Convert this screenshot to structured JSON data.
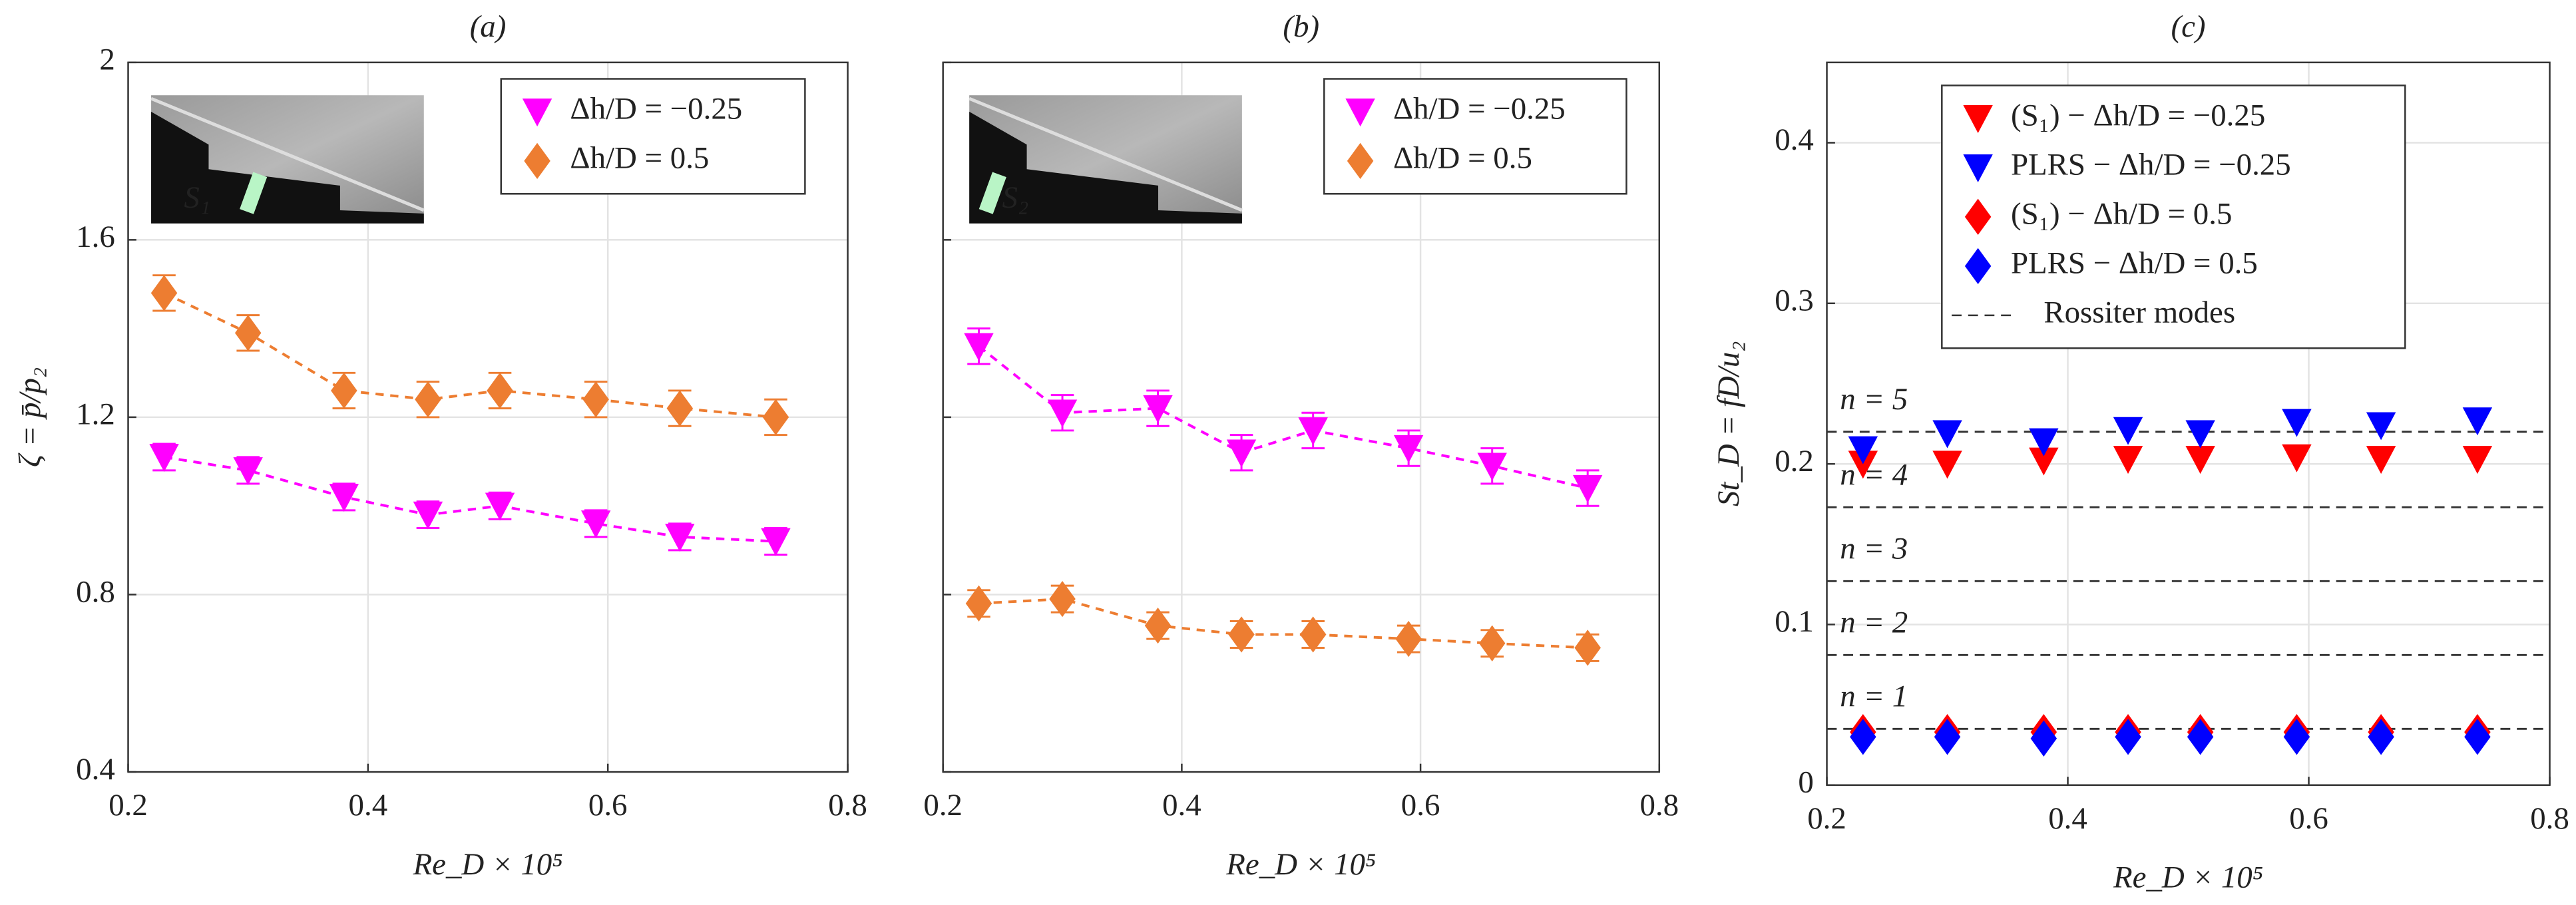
{
  "chart_data": [
    {
      "type": "line",
      "panel_label": "(a)",
      "ylabel": "ζ = p̄/p₂",
      "xlabel": "Re_D × 10⁵",
      "inset_label": "S₁",
      "x": [
        0.23,
        0.3,
        0.38,
        0.45,
        0.51,
        0.59,
        0.66,
        0.74
      ],
      "xlim": [
        0.2,
        0.8
      ],
      "xticks": [
        0.2,
        0.4,
        0.6,
        0.8
      ],
      "ylim": [
        0.4,
        2
      ],
      "yticks": [
        0.4,
        0.8,
        1.2,
        1.6,
        2
      ],
      "grid": true,
      "legend": "upper right",
      "series": [
        {
          "name": "Δh/D = −0.25",
          "color": "#ff00ff",
          "marker": "triangle-down",
          "values": [
            1.11,
            1.08,
            1.02,
            0.98,
            1.0,
            0.96,
            0.93,
            0.92
          ],
          "errors": [
            0.03,
            0.03,
            0.03,
            0.03,
            0.03,
            0.03,
            0.03,
            0.03
          ]
        },
        {
          "name": "Δh/D = 0.5",
          "color": "#ed7d31",
          "marker": "diamond",
          "values": [
            1.48,
            1.39,
            1.26,
            1.24,
            1.26,
            1.24,
            1.22,
            1.2
          ],
          "errors": [
            0.04,
            0.04,
            0.04,
            0.04,
            0.04,
            0.04,
            0.04,
            0.04
          ]
        }
      ]
    },
    {
      "type": "line",
      "panel_label": "(b)",
      "xlabel": "Re_D × 10⁵",
      "inset_label": "S₂",
      "show_ytick_labels": false,
      "x": [
        0.23,
        0.3,
        0.38,
        0.45,
        0.51,
        0.59,
        0.66,
        0.74
      ],
      "xlim": [
        0.2,
        0.8
      ],
      "xticks": [
        0.2,
        0.4,
        0.6,
        0.8
      ],
      "ylim": [
        0.4,
        2
      ],
      "yticks": [
        0.4,
        0.8,
        1.2,
        1.6,
        2
      ],
      "grid": true,
      "legend": "upper right",
      "series": [
        {
          "name": "Δh/D = −0.25",
          "color": "#ff00ff",
          "marker": "triangle-down",
          "values": [
            1.36,
            1.21,
            1.22,
            1.12,
            1.17,
            1.13,
            1.09,
            1.04
          ],
          "errors": [
            0.04,
            0.04,
            0.04,
            0.04,
            0.04,
            0.04,
            0.04,
            0.04
          ]
        },
        {
          "name": "Δh/D = 0.5",
          "color": "#ed7d31",
          "marker": "diamond",
          "values": [
            0.78,
            0.79,
            0.73,
            0.71,
            0.71,
            0.7,
            0.69,
            0.68
          ],
          "errors": [
            0.03,
            0.03,
            0.03,
            0.03,
            0.03,
            0.03,
            0.03,
            0.03
          ]
        }
      ]
    },
    {
      "type": "scatter",
      "panel_label": "(c)",
      "ylabel": "St_D = fD/u₂",
      "xlabel": "Re_D × 10⁵",
      "x": [
        0.23,
        0.3,
        0.38,
        0.45,
        0.51,
        0.59,
        0.66,
        0.74
      ],
      "xlim": [
        0.2,
        0.8
      ],
      "xticks": [
        0.2,
        0.4,
        0.6,
        0.8
      ],
      "ylim": [
        0,
        0.45
      ],
      "yticks": [
        0,
        0.1,
        0.2,
        0.3,
        0.4
      ],
      "grid": true,
      "legend": "upper center",
      "series": [
        {
          "name": "(S₁) − Δh/D = −0.25",
          "color": "#ff0000",
          "marker": "triangle-down",
          "values": [
            0.2,
            0.2,
            0.202,
            0.203,
            0.203,
            0.204,
            0.203,
            0.203
          ]
        },
        {
          "name": "PLRS − Δh/D = −0.25",
          "color": "#0000ff",
          "marker": "triangle-down",
          "values": [
            0.209,
            0.219,
            0.214,
            0.221,
            0.219,
            0.226,
            0.224,
            0.227
          ]
        },
        {
          "name": "(S₁) − Δh/D = 0.5",
          "color": "#ff0000",
          "marker": "diamond",
          "values": [
            0.033,
            0.033,
            0.033,
            0.033,
            0.033,
            0.033,
            0.033,
            0.033
          ]
        },
        {
          "name": "PLRS − Δh/D = 0.5",
          "color": "#0000ff",
          "marker": "diamond",
          "values": [
            0.03,
            0.03,
            0.029,
            0.03,
            0.03,
            0.03,
            0.03,
            0.03
          ]
        }
      ],
      "reference_lines": {
        "name": "Rossiter modes",
        "values": [
          0.035,
          0.081,
          0.127,
          0.173,
          0.22
        ],
        "labels": [
          "n = 1",
          "n = 2",
          "n = 3",
          "n = 4",
          "n = 5"
        ]
      }
    }
  ]
}
